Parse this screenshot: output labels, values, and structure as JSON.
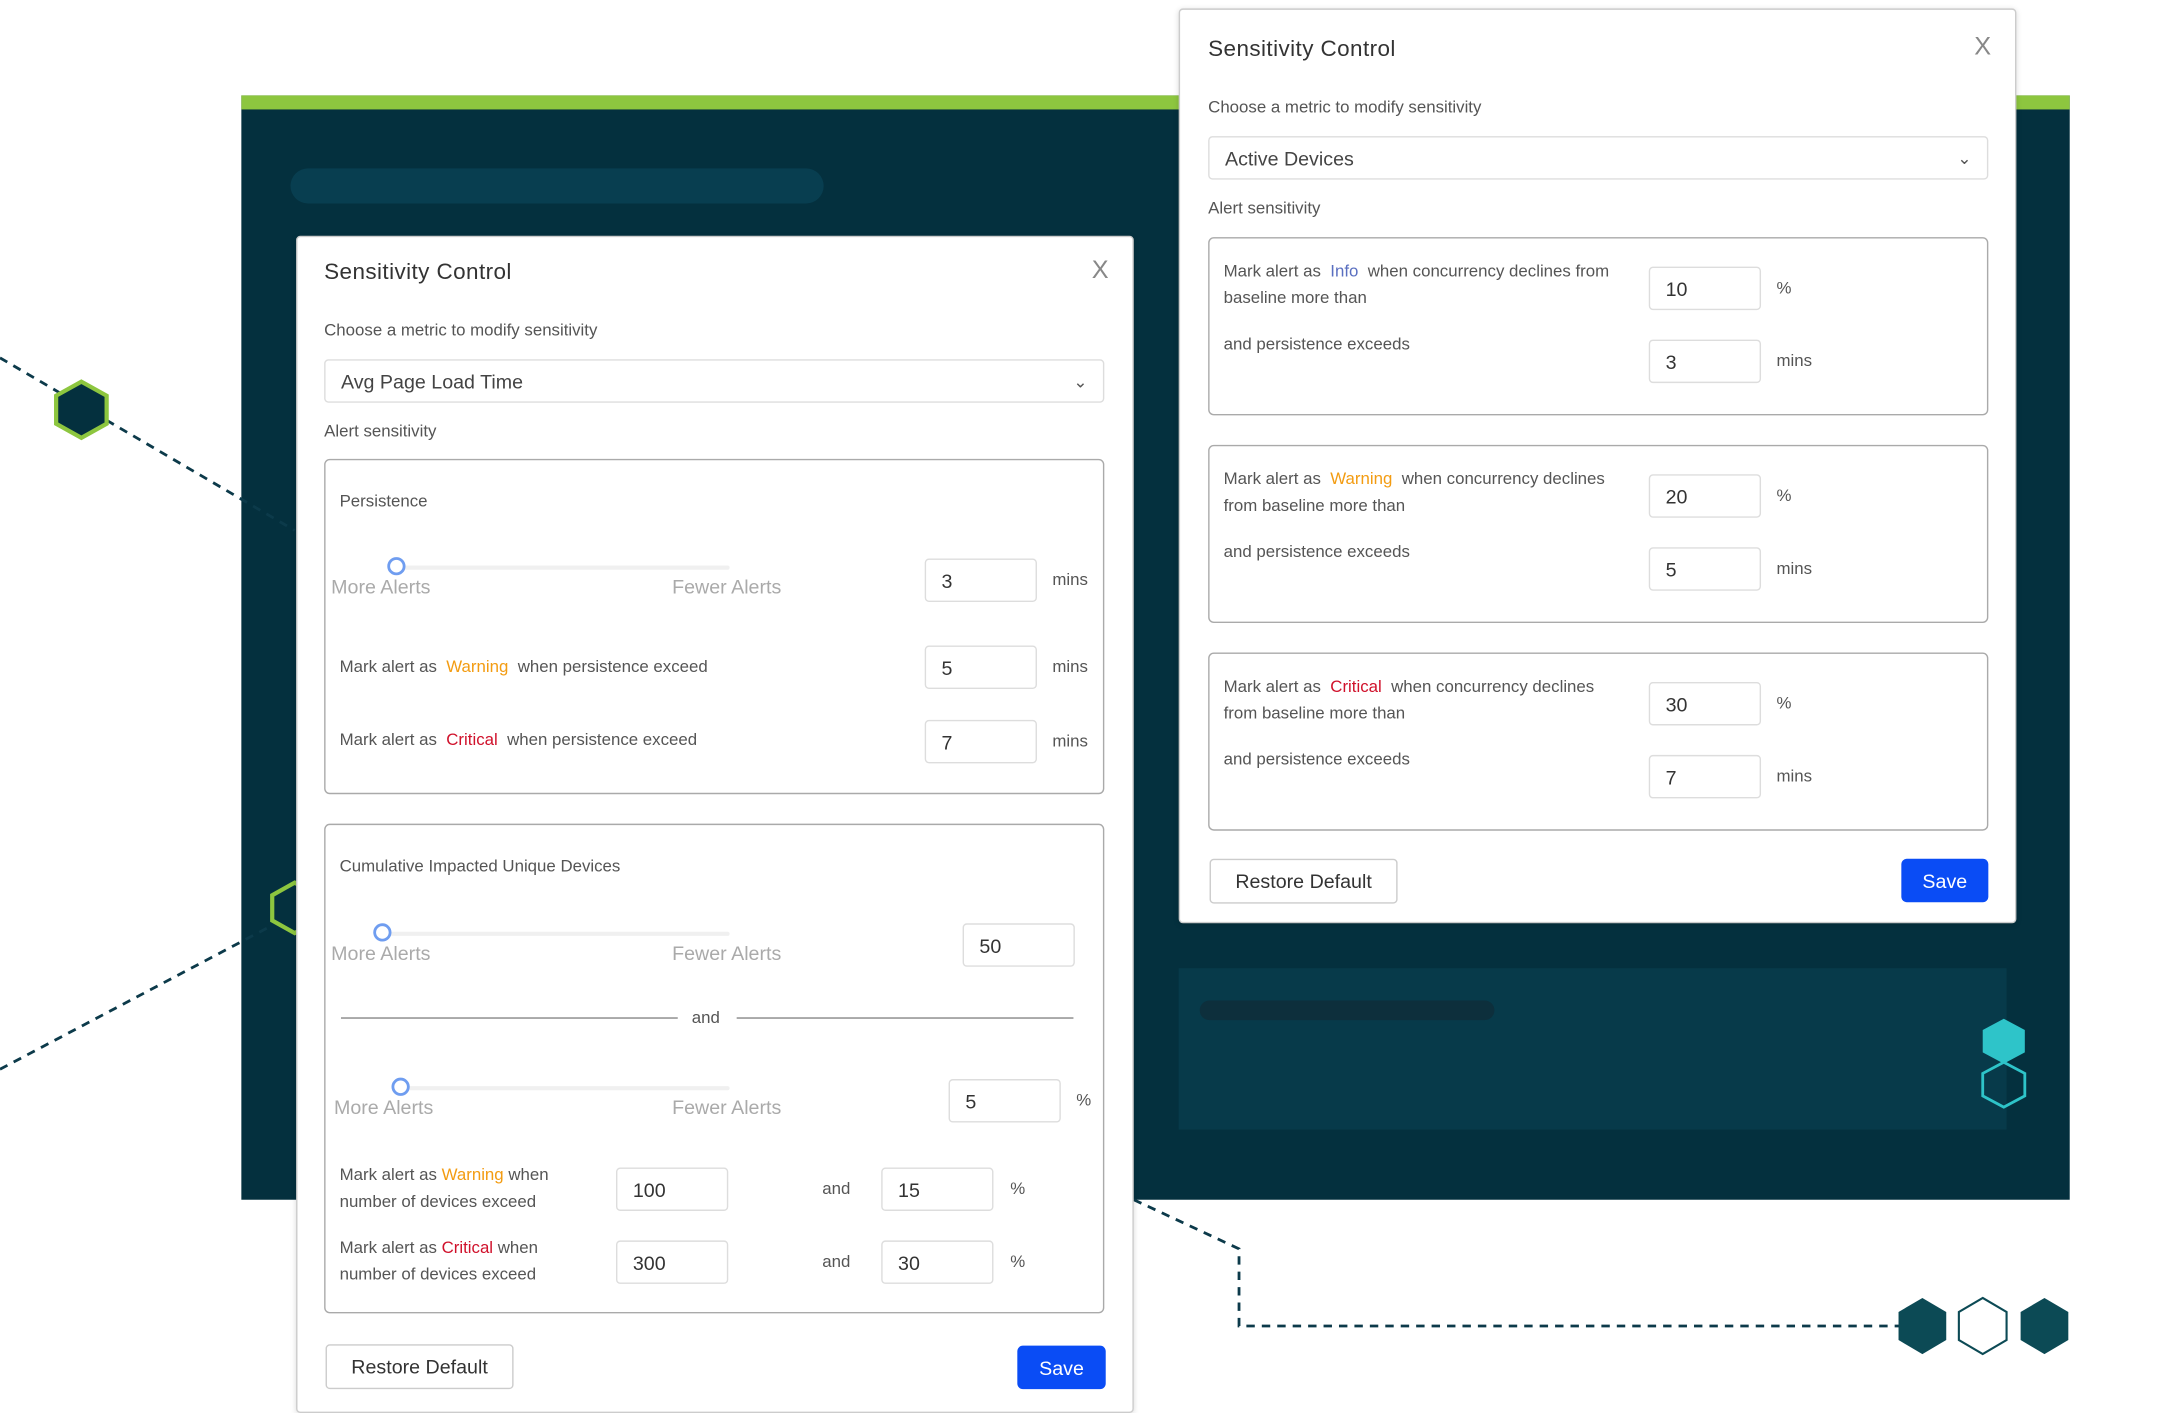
{
  "colors": {
    "background": "#04303e",
    "accent_bar": "#8dc63f",
    "save": "#0a4cf5",
    "warning": "#f39c12",
    "critical": "#d0112b",
    "info": "#5a6fc0"
  },
  "left_modal": {
    "title": "Sensitivity Control",
    "close": "X",
    "choose_label": "Choose a metric to modify sensitivity",
    "metric": "Avg Page Load Time",
    "alert_sensitivity": "Alert sensitivity",
    "persistence": {
      "heading": "Persistence",
      "more": "More Alerts",
      "fewer": "Fewer Alerts",
      "slider_level": 0,
      "value": "3",
      "unit": "mins",
      "warning": {
        "pre": "Mark alert as",
        "level": "Warning",
        "post": "when persistence exceed",
        "value": "5",
        "unit": "mins"
      },
      "critical": {
        "pre": "Mark alert as",
        "level": "Critical",
        "post": "when persistence exceed",
        "value": "7",
        "unit": "mins"
      }
    },
    "devices": {
      "heading": "Cumulative Impacted Unique Devices",
      "more": "More Alerts",
      "fewer": "Fewer Alerts",
      "slider1_level": 0,
      "value1": "50",
      "and": "and",
      "slider2_level": 0,
      "value2": "5",
      "unit2": "%",
      "warning": {
        "pre": "Mark alert as",
        "level": "Warning",
        "post": "when",
        "line2": "number of devices exceed",
        "count": "100",
        "and": "and",
        "pct": "15",
        "unit": "%"
      },
      "critical": {
        "pre": "Mark alert as",
        "level": "Critical",
        "post": "when",
        "line2": "number of devices exceed",
        "count": "300",
        "and": "and",
        "pct": "30",
        "unit": "%"
      }
    },
    "restore": "Restore Default",
    "save": "Save"
  },
  "right_modal": {
    "title": "Sensitivity Control",
    "close": "X",
    "choose_label": "Choose a metric to modify sensitivity",
    "metric": "Active Devices",
    "alert_sensitivity": "Alert sensitivity",
    "rules": [
      {
        "pre": "Mark alert as",
        "level": "Info",
        "cls": "info",
        "post": "when concurrency declines from",
        "line2": "baseline more than",
        "pct": "10",
        "pct_unit": "%",
        "persist_label": "and persistence exceeds",
        "mins": "3",
        "mins_unit": "mins"
      },
      {
        "pre": "Mark alert as",
        "level": "Warning",
        "cls": "warn",
        "post": "when concurrency declines",
        "line2": "from baseline more than",
        "pct": "20",
        "pct_unit": "%",
        "persist_label": "and persistence exceeds",
        "mins": "5",
        "mins_unit": "mins"
      },
      {
        "pre": "Mark alert as",
        "level": "Critical",
        "cls": "crit",
        "post": "when concurrency declines",
        "line2": "from baseline more than",
        "pct": "30",
        "pct_unit": "%",
        "persist_label": "and persistence exceeds",
        "mins": "7",
        "mins_unit": "mins"
      }
    ],
    "restore": "Restore Default",
    "save": "Save"
  }
}
